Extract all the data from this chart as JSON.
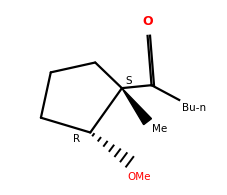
{
  "bg_color": "#ffffff",
  "bond_color": "#000000",
  "O_color": "#ff0000",
  "OMe_color": "#ff0000",
  "label_color": "#000000",
  "S_label": "S",
  "R_label": "R",
  "O_label": "O",
  "Bun_label": "Bu-n",
  "Me_label": "Me",
  "OMe_label": "OMe",
  "font_size": 7.5,
  "lw": 1.6
}
